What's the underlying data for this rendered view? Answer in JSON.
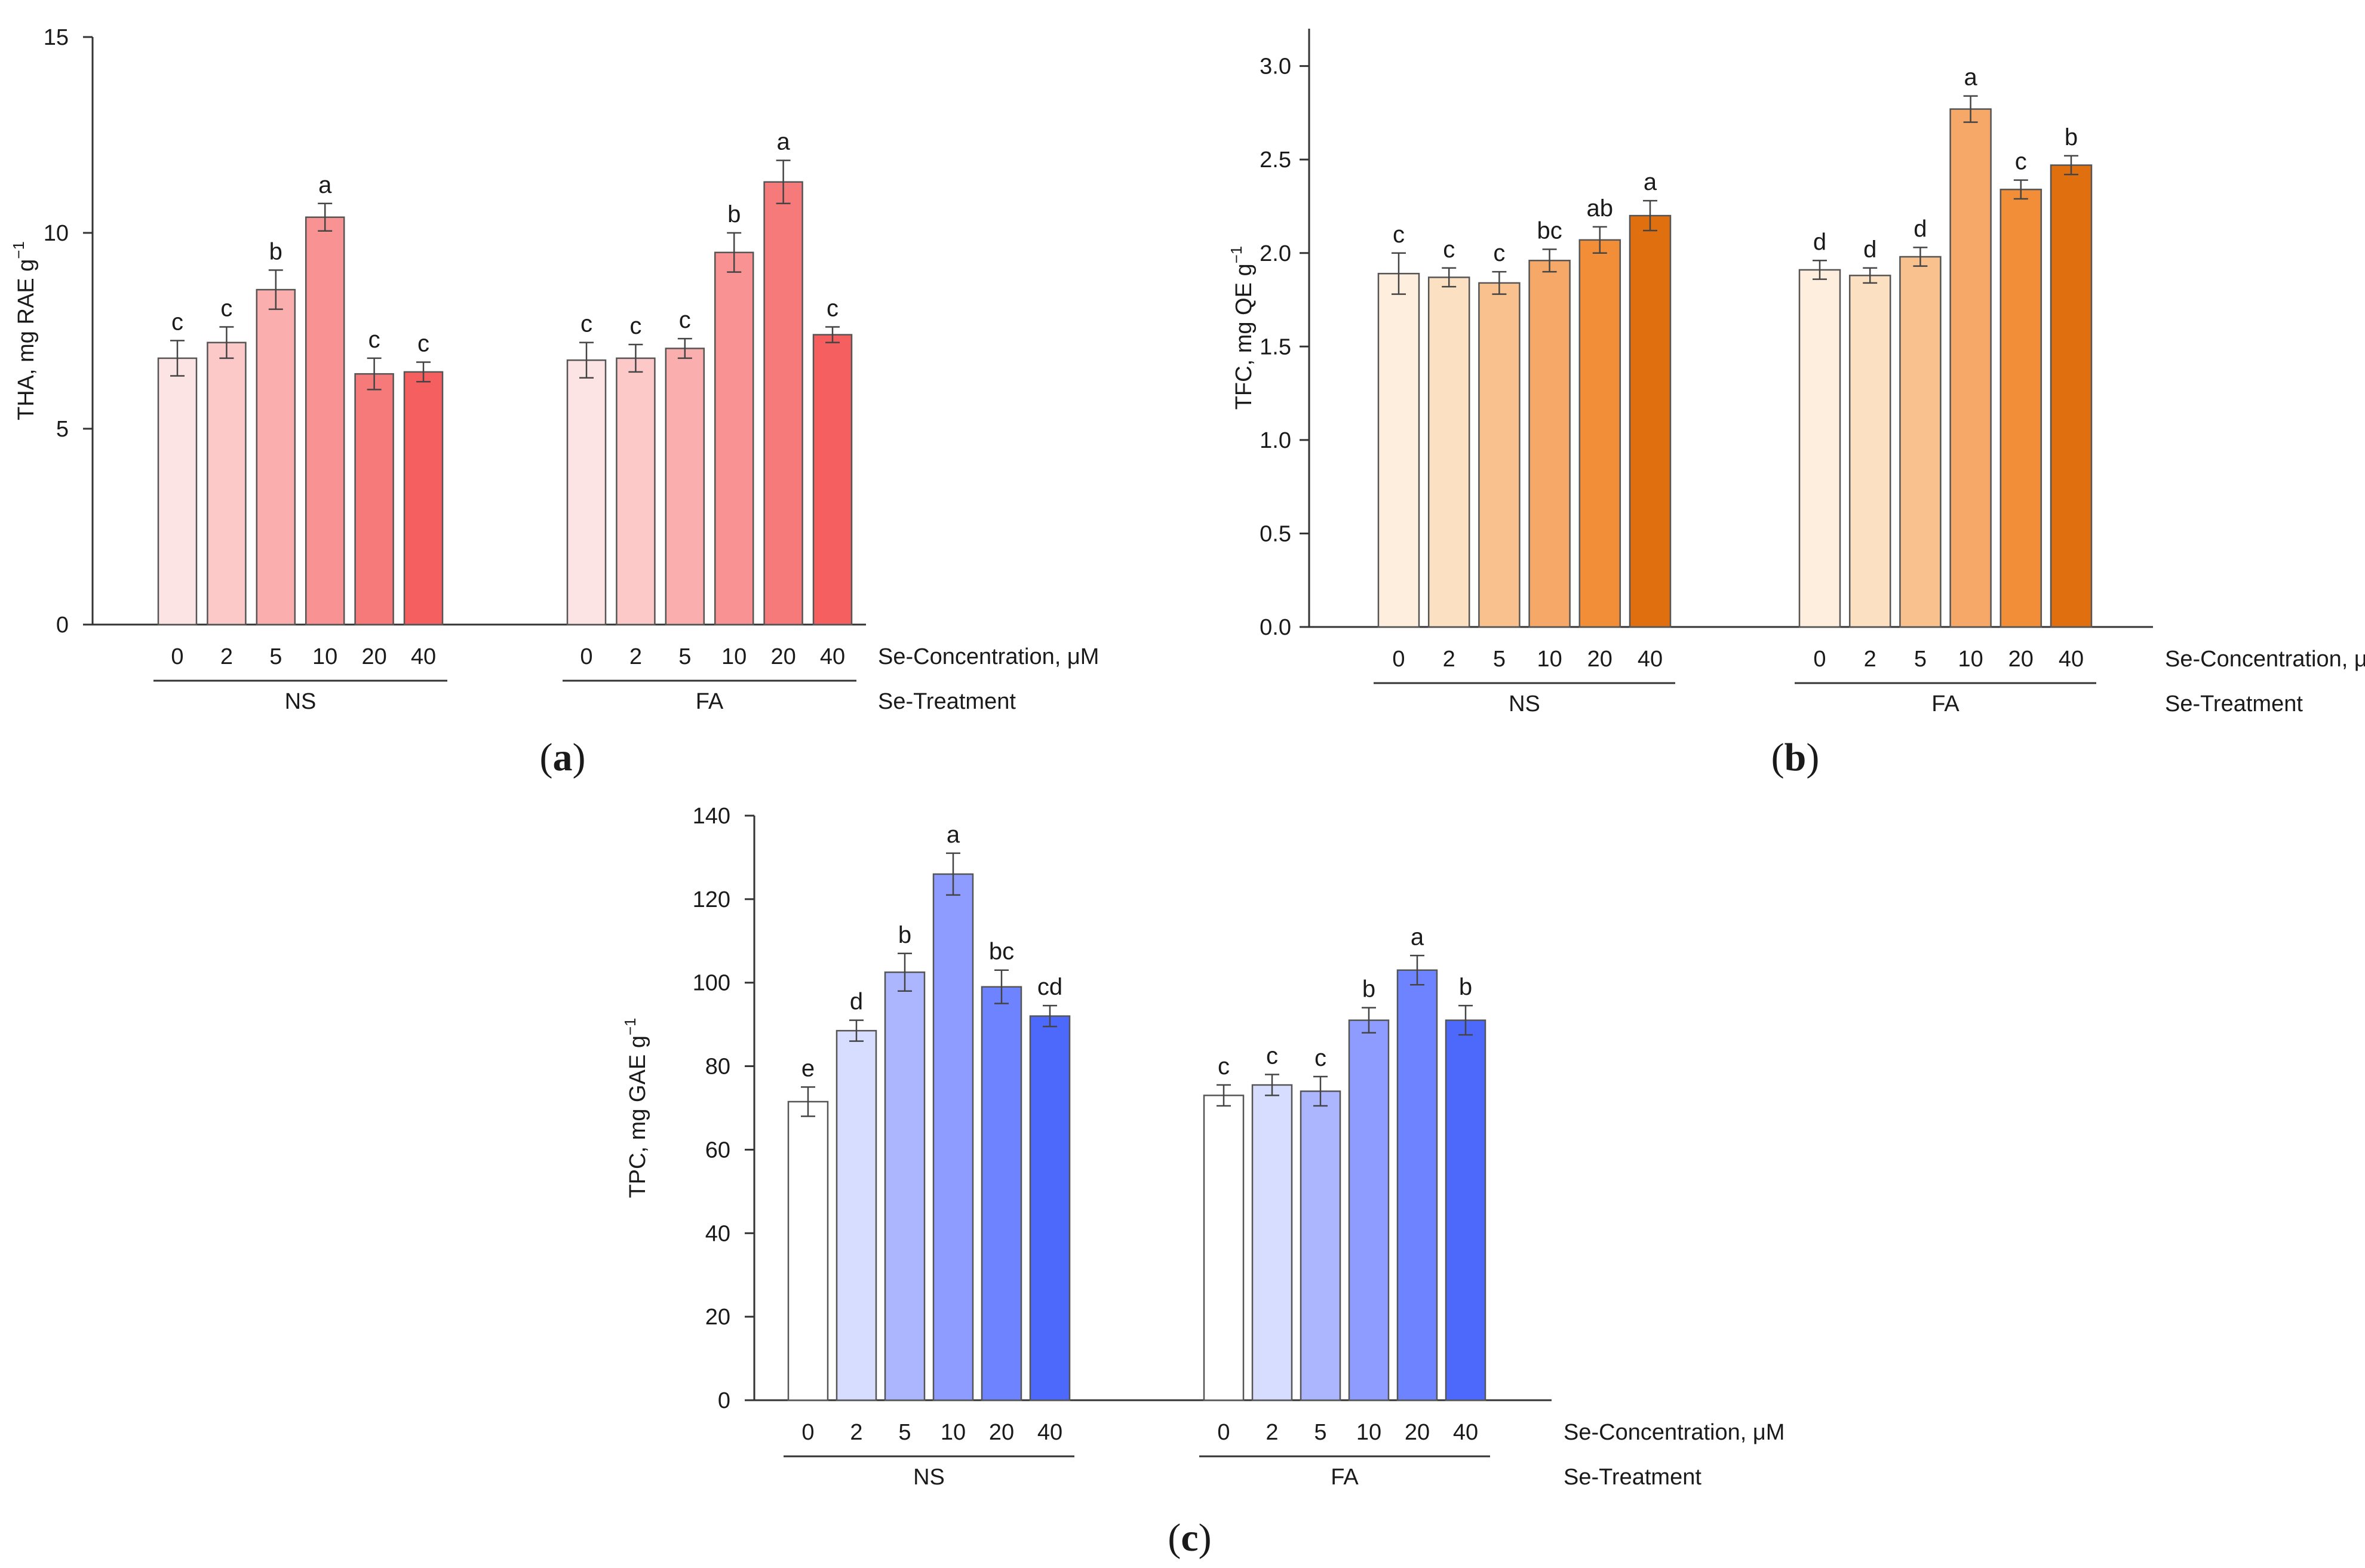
{
  "chart_data": [
    {
      "type": "bar",
      "panel_label": "a",
      "ylabel": "THA, mg RAE g",
      "ylabel_sup": "−1",
      "ylim": [
        0,
        15
      ],
      "yticks": [
        "0",
        "5",
        "10",
        "15"
      ],
      "ytick_values": [
        0,
        5,
        10,
        15
      ],
      "concentration_axis_label": "Se-Concentration, μM",
      "treatment_axis_label": "Se-Treatment",
      "groups": [
        {
          "name": "NS",
          "categories": [
            "0",
            "2",
            "5",
            "10",
            "20",
            "40"
          ],
          "values": [
            6.8,
            7.2,
            8.55,
            10.4,
            6.4,
            6.45
          ],
          "errors": [
            0.45,
            0.4,
            0.5,
            0.35,
            0.4,
            0.25
          ],
          "letters": [
            "c",
            "c",
            "b",
            "a",
            "c",
            "c"
          ],
          "colors": [
            "#fde4e4",
            "#fcc8c8",
            "#fbaeae",
            "#f99393",
            "#f77a7a",
            "#f55f5f"
          ]
        },
        {
          "name": "FA",
          "categories": [
            "0",
            "2",
            "5",
            "10",
            "20",
            "40"
          ],
          "values": [
            6.75,
            6.8,
            7.05,
            9.5,
            11.3,
            7.4
          ],
          "errors": [
            0.45,
            0.35,
            0.25,
            0.5,
            0.55,
            0.2
          ],
          "letters": [
            "c",
            "c",
            "c",
            "b",
            "a",
            "c"
          ],
          "colors": [
            "#fde4e4",
            "#fcc8c8",
            "#fbaeae",
            "#f99393",
            "#f77a7a",
            "#f55f5f"
          ]
        }
      ]
    },
    {
      "type": "bar",
      "panel_label": "b",
      "ylabel": "TFC, mg QE g",
      "ylabel_sup": "−1",
      "ylim": [
        0,
        3.2
      ],
      "yticks": [
        "0.0",
        "0.5",
        "1.0",
        "1.5",
        "2.0",
        "2.5",
        "3.0"
      ],
      "ytick_values": [
        0,
        0.5,
        1.0,
        1.5,
        2.0,
        2.5,
        3.0
      ],
      "concentration_axis_label": "Se-Concentration, μM",
      "treatment_axis_label": "Se-Treatment",
      "groups": [
        {
          "name": "NS",
          "categories": [
            "0",
            "2",
            "5",
            "10",
            "20",
            "40"
          ],
          "values": [
            1.89,
            1.87,
            1.84,
            1.96,
            2.07,
            2.2
          ],
          "errors": [
            0.11,
            0.05,
            0.06,
            0.06,
            0.07,
            0.08
          ],
          "letters": [
            "c",
            "c",
            "c",
            "bc",
            "ab",
            "a"
          ],
          "colors": [
            "#fdeede",
            "#fce0c2",
            "#f8c18d",
            "#f6a869",
            "#f28e38",
            "#e06f10"
          ]
        },
        {
          "name": "FA",
          "categories": [
            "0",
            "2",
            "5",
            "10",
            "20",
            "40"
          ],
          "values": [
            1.91,
            1.88,
            1.98,
            2.77,
            2.34,
            2.47
          ],
          "errors": [
            0.05,
            0.04,
            0.05,
            0.07,
            0.05,
            0.05
          ],
          "letters": [
            "d",
            "d",
            "d",
            "a",
            "c",
            "b"
          ],
          "colors": [
            "#fdeede",
            "#fce0c2",
            "#f8c18d",
            "#f6a869",
            "#f28e38",
            "#e06f10"
          ]
        }
      ]
    },
    {
      "type": "bar",
      "panel_label": "c",
      "ylabel": "TPC, mg GAE g",
      "ylabel_sup": "−1",
      "ylim": [
        0,
        140
      ],
      "yticks": [
        "0",
        "20",
        "40",
        "60",
        "80",
        "100",
        "120",
        "140"
      ],
      "ytick_values": [
        0,
        20,
        40,
        60,
        80,
        100,
        120,
        140
      ],
      "concentration_axis_label": "Se-Concentration, μM",
      "treatment_axis_label": "Se-Treatment",
      "groups": [
        {
          "name": "NS",
          "categories": [
            "0",
            "2",
            "5",
            "10",
            "20",
            "40"
          ],
          "values": [
            71.5,
            88.5,
            102.5,
            126,
            99,
            92
          ],
          "errors": [
            3.5,
            2.5,
            4.5,
            5,
            4,
            2.5
          ],
          "letters": [
            "e",
            "d",
            "b",
            "a",
            "bc",
            "cd"
          ],
          "colors": [
            "#ffffff",
            "#d6ddff",
            "#abb6ff",
            "#8e9cff",
            "#6e83ff",
            "#4d69fb"
          ]
        },
        {
          "name": "FA",
          "categories": [
            "0",
            "2",
            "5",
            "10",
            "20",
            "40"
          ],
          "values": [
            73,
            75.5,
            74,
            91,
            103,
            91
          ],
          "errors": [
            2.5,
            2.5,
            3.5,
            3,
            3.5,
            3.5
          ],
          "letters": [
            "c",
            "c",
            "c",
            "b",
            "a",
            "b"
          ],
          "colors": [
            "#ffffff",
            "#d6ddff",
            "#abb6ff",
            "#8e9cff",
            "#6e83ff",
            "#4d69fb"
          ]
        }
      ]
    }
  ]
}
